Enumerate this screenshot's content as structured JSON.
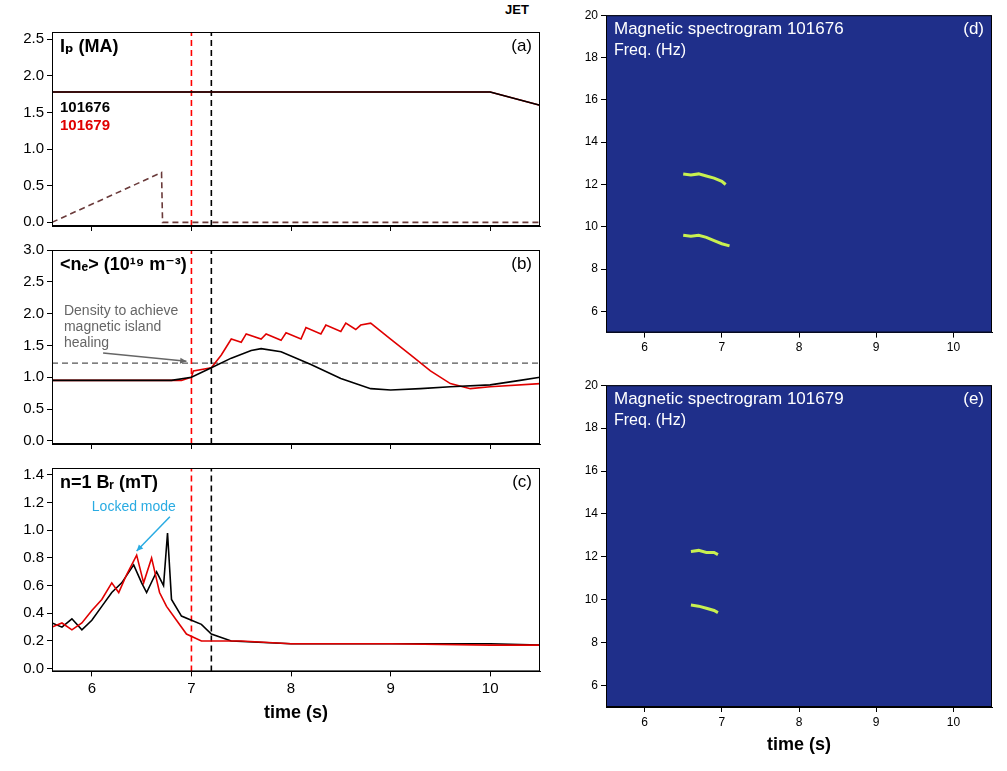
{
  "label": "JET",
  "chart_data": [
    {
      "type": "line",
      "y_label": "Iₚ (MA)",
      "panel": "(a)",
      "grid": false,
      "tick_labels": "y",
      "legend": "upper left",
      "xlim": [
        5.6,
        10.5
      ],
      "xticks": [
        6,
        7,
        8,
        9,
        10
      ],
      "ylim": [
        -0.05,
        2.6
      ],
      "yticks": [
        {
          "value": 0,
          "label": "0.0"
        },
        {
          "value": 0.5,
          "label": "0.5"
        },
        {
          "value": 1,
          "label": "1.0"
        },
        {
          "value": 1.5,
          "label": "1.5"
        },
        {
          "value": 2,
          "label": "2.0"
        },
        {
          "value": 2.5,
          "label": "2.5"
        }
      ],
      "series": [
        {
          "name": "101676",
          "color": "#000000",
          "x": [
            5.6,
            10.0,
            10.5
          ],
          "values": [
            1.78,
            1.78,
            1.6
          ]
        },
        {
          "name": "101679",
          "color": "#e00000",
          "x": [
            5.6,
            10.0,
            10.5
          ],
          "values": [
            1.78,
            1.78,
            1.6
          ]
        },
        {
          "color": "#6a3a3a",
          "line_style": "dashed",
          "x": [
            5.6,
            6.7,
            6.71,
            10.5
          ],
          "values": [
            0,
            0.68,
            0,
            0
          ]
        }
      ],
      "vlines": [
        {
          "x": 7.0,
          "color": "#ff0000"
        },
        {
          "x": 7.2,
          "color": "#000000"
        }
      ]
    },
    {
      "type": "line",
      "y_label": "<nₑ> (10¹⁹ m⁻³)",
      "panel": "(b)",
      "grid": false,
      "tick_labels": "y",
      "xlim": [
        5.6,
        10.5
      ],
      "xticks": [
        6,
        7,
        8,
        9,
        10
      ],
      "ylim": [
        -0.05,
        3.0
      ],
      "yticks": [
        {
          "value": 0,
          "label": "0.0"
        },
        {
          "value": 0.5,
          "label": "0.5"
        },
        {
          "value": 1,
          "label": "1.0"
        },
        {
          "value": 1.5,
          "label": "1.5"
        },
        {
          "value": 2,
          "label": "2.0"
        },
        {
          "value": 2.5,
          "label": "2.5"
        },
        {
          "value": 3,
          "label": "3.0"
        }
      ],
      "series": [
        {
          "color": "#000000",
          "x": [
            5.6,
            6.8,
            7.0,
            7.2,
            7.4,
            7.6,
            7.7,
            7.9,
            8.2,
            8.5,
            8.8,
            9.0,
            9.3,
            9.6,
            10.0,
            10.3,
            10.5
          ],
          "values": [
            0.95,
            0.95,
            1.0,
            1.15,
            1.3,
            1.42,
            1.45,
            1.4,
            1.2,
            0.98,
            0.82,
            0.8,
            0.82,
            0.85,
            0.88,
            0.95,
            1.0
          ]
        },
        {
          "color": "#e00000",
          "x": [
            5.6,
            6.9,
            7.0,
            7.02,
            7.2,
            7.3,
            7.4,
            7.5,
            7.55,
            7.7,
            7.75,
            7.9,
            7.95,
            8.1,
            8.15,
            8.3,
            8.35,
            8.5,
            8.55,
            8.65,
            8.7,
            8.8,
            9.0,
            9.2,
            9.4,
            9.6,
            9.8,
            10.0,
            10.5
          ],
          "values": [
            0.95,
            0.95,
            1.0,
            1.1,
            1.15,
            1.35,
            1.6,
            1.55,
            1.68,
            1.6,
            1.68,
            1.58,
            1.7,
            1.6,
            1.78,
            1.68,
            1.82,
            1.72,
            1.85,
            1.75,
            1.82,
            1.85,
            1.6,
            1.35,
            1.1,
            0.9,
            0.82,
            0.85,
            0.9
          ]
        }
      ],
      "vlines": [
        {
          "x": 7.0,
          "color": "#ff0000"
        },
        {
          "x": 7.2,
          "color": "#000000"
        }
      ],
      "hlines": [
        {
          "y": 1.22,
          "color": "#555555"
        }
      ],
      "annotations": [
        {
          "text": "Density to achieve magnetic island healing",
          "color": "#666666",
          "x": 5.72,
          "y": 2.15,
          "arrow_to": {
            "x": 6.95,
            "y": 1.25
          }
        }
      ]
    },
    {
      "type": "line",
      "y_label": "n=1 Bᵣ (mT)",
      "panel": "(c)",
      "grid": false,
      "x_label": "time (s)",
      "xlim": [
        5.6,
        10.5
      ],
      "xticks": [
        6,
        7,
        8,
        9,
        10
      ],
      "ylim": [
        -0.02,
        1.45
      ],
      "yticks": [
        {
          "value": 0,
          "label": "0.0"
        },
        {
          "value": 0.2,
          "label": "0.2"
        },
        {
          "value": 0.4,
          "label": "0.4"
        },
        {
          "value": 0.6,
          "label": "0.6"
        },
        {
          "value": 0.8,
          "label": "0.8"
        },
        {
          "value": 1,
          "label": "1.0"
        },
        {
          "value": 1.2,
          "label": "1.2"
        },
        {
          "value": 1.4,
          "label": "1.4"
        }
      ],
      "series": [
        {
          "color": "#e00000",
          "x": [
            5.6,
            5.7,
            5.8,
            5.9,
            6.0,
            6.1,
            6.2,
            6.27,
            6.35,
            6.45,
            6.52,
            6.6,
            6.68,
            6.75,
            6.85,
            6.95,
            7.1,
            7.5,
            8.0,
            9.0,
            10.0,
            10.5
          ],
          "values": [
            0.3,
            0.33,
            0.28,
            0.33,
            0.42,
            0.5,
            0.62,
            0.55,
            0.68,
            0.82,
            0.62,
            0.8,
            0.55,
            0.45,
            0.35,
            0.25,
            0.2,
            0.2,
            0.18,
            0.18,
            0.17,
            0.17
          ]
        },
        {
          "color": "#000000",
          "x": [
            5.6,
            5.7,
            5.8,
            5.9,
            6.0,
            6.1,
            6.2,
            6.3,
            6.42,
            6.5,
            6.55,
            6.65,
            6.72,
            6.76,
            6.8,
            6.9,
            7.0,
            7.1,
            7.2,
            7.4,
            8.0,
            9.0,
            10.0,
            10.5
          ],
          "values": [
            0.33,
            0.3,
            0.36,
            0.28,
            0.35,
            0.45,
            0.55,
            0.62,
            0.75,
            0.62,
            0.55,
            0.7,
            0.6,
            0.98,
            0.5,
            0.38,
            0.35,
            0.32,
            0.25,
            0.2,
            0.18,
            0.18,
            0.18,
            0.17
          ]
        }
      ],
      "vlines": [
        {
          "x": 7.0,
          "color": "#ff0000"
        },
        {
          "x": 7.2,
          "color": "#000000"
        }
      ],
      "annotations": [
        {
          "text": "Locked mode",
          "color": "#29abe2",
          "x": 6.0,
          "y": 1.22,
          "arrow_to": {
            "x": 6.45,
            "y": 0.85
          }
        }
      ]
    },
    {
      "type": "spectrogram",
      "title": "Magnetic spectrogram 101676",
      "y_label": "Freq. (Hz)",
      "panel": "(d)",
      "grid": false,
      "xlim": [
        5.5,
        10.5
      ],
      "xticks": [
        6,
        7,
        8,
        9,
        10
      ],
      "ylim": [
        5,
        20
      ],
      "yticks": [
        6,
        8,
        10,
        12,
        14,
        16,
        18,
        20
      ],
      "series": [
        {
          "color": "#c8f050",
          "x": [
            6.5,
            6.6,
            6.7,
            6.8,
            6.9,
            7.0,
            7.05
          ],
          "values": [
            12.5,
            12.45,
            12.5,
            12.4,
            12.3,
            12.15,
            12.0
          ]
        },
        {
          "color": "#c8f050",
          "x": [
            6.5,
            6.6,
            6.7,
            6.8,
            6.9,
            7.0,
            7.1
          ],
          "values": [
            9.6,
            9.55,
            9.6,
            9.5,
            9.35,
            9.2,
            9.1
          ]
        }
      ]
    },
    {
      "type": "spectrogram",
      "title": "Magnetic spectrogram 101679",
      "y_label": "Freq. (Hz)",
      "panel": "(e)",
      "grid": false,
      "x_label": "time (s)",
      "xlim": [
        5.5,
        10.5
      ],
      "xticks": [
        6,
        7,
        8,
        9,
        10
      ],
      "ylim": [
        5,
        20
      ],
      "yticks": [
        6,
        8,
        10,
        12,
        14,
        16,
        18,
        20
      ],
      "series": [
        {
          "color": "#c8f050",
          "x": [
            6.6,
            6.7,
            6.8,
            6.9,
            6.95
          ],
          "values": [
            12.25,
            12.3,
            12.2,
            12.2,
            12.1
          ]
        },
        {
          "color": "#c8f050",
          "x": [
            6.6,
            6.7,
            6.8,
            6.9,
            6.95
          ],
          "values": [
            9.75,
            9.7,
            9.6,
            9.5,
            9.4
          ]
        }
      ]
    }
  ]
}
